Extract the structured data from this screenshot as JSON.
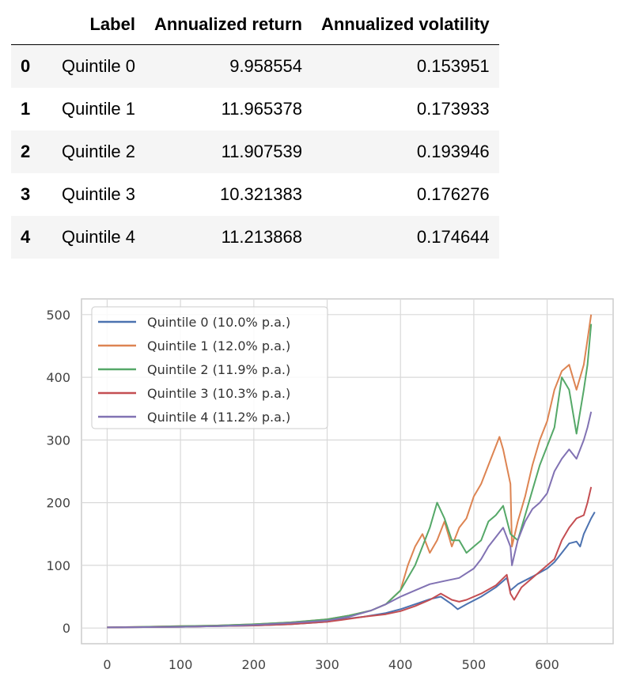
{
  "table": {
    "columns": [
      "",
      "Label",
      "Annualized return",
      "Annualized volatility"
    ],
    "rows": [
      {
        "index": "0",
        "label": "Quintile 0",
        "annualized_return": "9.958554",
        "annualized_volatility": "0.153951"
      },
      {
        "index": "1",
        "label": "Quintile 1",
        "annualized_return": "11.965378",
        "annualized_volatility": "0.173933"
      },
      {
        "index": "2",
        "label": "Quintile 2",
        "annualized_return": "11.907539",
        "annualized_volatility": "0.193946"
      },
      {
        "index": "3",
        "label": "Quintile 3",
        "annualized_return": "10.321383",
        "annualized_volatility": "0.176276"
      },
      {
        "index": "4",
        "label": "Quintile 4",
        "annualized_return": "11.213868",
        "annualized_volatility": "0.174644"
      }
    ]
  },
  "chart_data": {
    "type": "line",
    "title": "",
    "xlabel": "",
    "ylabel": "",
    "xlim": [
      -35,
      690
    ],
    "ylim": [
      -25,
      525
    ],
    "x_ticks": [
      0,
      100,
      200,
      300,
      400,
      500,
      600
    ],
    "y_ticks": [
      0,
      100,
      200,
      300,
      400,
      500
    ],
    "grid": true,
    "legend_position": "top-left",
    "series": [
      {
        "name": "Quintile 0 (10.0% p.a.)",
        "color": "#4c72b0",
        "points": [
          [
            0,
            1
          ],
          [
            50,
            1.5
          ],
          [
            100,
            2
          ],
          [
            150,
            3
          ],
          [
            200,
            4
          ],
          [
            250,
            6
          ],
          [
            300,
            10
          ],
          [
            320,
            14
          ],
          [
            350,
            18
          ],
          [
            380,
            24
          ],
          [
            400,
            30
          ],
          [
            420,
            38
          ],
          [
            440,
            46
          ],
          [
            455,
            50
          ],
          [
            470,
            38
          ],
          [
            478,
            30
          ],
          [
            490,
            38
          ],
          [
            510,
            50
          ],
          [
            530,
            65
          ],
          [
            545,
            80
          ],
          [
            550,
            60
          ],
          [
            560,
            70
          ],
          [
            580,
            82
          ],
          [
            600,
            95
          ],
          [
            610,
            105
          ],
          [
            620,
            120
          ],
          [
            630,
            135
          ],
          [
            640,
            138
          ],
          [
            645,
            130
          ],
          [
            650,
            150
          ],
          [
            660,
            175
          ],
          [
            665,
            185
          ]
        ]
      },
      {
        "name": "Quintile 1 (12.0% p.a.)",
        "color": "#dd8452",
        "points": [
          [
            0,
            1
          ],
          [
            50,
            2
          ],
          [
            100,
            3
          ],
          [
            150,
            4
          ],
          [
            200,
            6
          ],
          [
            250,
            9
          ],
          [
            300,
            14
          ],
          [
            330,
            20
          ],
          [
            360,
            28
          ],
          [
            380,
            38
          ],
          [
            400,
            60
          ],
          [
            410,
            100
          ],
          [
            420,
            130
          ],
          [
            430,
            150
          ],
          [
            440,
            120
          ],
          [
            450,
            140
          ],
          [
            460,
            170
          ],
          [
            470,
            130
          ],
          [
            480,
            160
          ],
          [
            490,
            175
          ],
          [
            500,
            210
          ],
          [
            510,
            230
          ],
          [
            520,
            260
          ],
          [
            530,
            290
          ],
          [
            535,
            305
          ],
          [
            540,
            285
          ],
          [
            550,
            230
          ],
          [
            552,
            130
          ],
          [
            560,
            170
          ],
          [
            570,
            210
          ],
          [
            580,
            260
          ],
          [
            590,
            300
          ],
          [
            600,
            330
          ],
          [
            610,
            380
          ],
          [
            620,
            410
          ],
          [
            630,
            420
          ],
          [
            640,
            380
          ],
          [
            650,
            420
          ],
          [
            655,
            460
          ],
          [
            660,
            500
          ]
        ]
      },
      {
        "name": "Quintile 2 (11.9% p.a.)",
        "color": "#55a868",
        "points": [
          [
            0,
            1
          ],
          [
            50,
            2
          ],
          [
            100,
            3
          ],
          [
            150,
            4
          ],
          [
            200,
            6
          ],
          [
            250,
            9
          ],
          [
            300,
            14
          ],
          [
            330,
            20
          ],
          [
            360,
            28
          ],
          [
            380,
            38
          ],
          [
            400,
            60
          ],
          [
            420,
            100
          ],
          [
            440,
            160
          ],
          [
            450,
            200
          ],
          [
            460,
            175
          ],
          [
            470,
            140
          ],
          [
            480,
            140
          ],
          [
            490,
            120
          ],
          [
            500,
            130
          ],
          [
            510,
            140
          ],
          [
            520,
            170
          ],
          [
            530,
            180
          ],
          [
            540,
            195
          ],
          [
            550,
            150
          ],
          [
            560,
            140
          ],
          [
            570,
            180
          ],
          [
            580,
            220
          ],
          [
            590,
            260
          ],
          [
            600,
            290
          ],
          [
            610,
            320
          ],
          [
            620,
            400
          ],
          [
            630,
            380
          ],
          [
            640,
            310
          ],
          [
            650,
            380
          ],
          [
            655,
            420
          ],
          [
            660,
            485
          ]
        ]
      },
      {
        "name": "Quintile 3 (10.3% p.a.)",
        "color": "#c44e52",
        "points": [
          [
            0,
            1
          ],
          [
            50,
            1.5
          ],
          [
            100,
            2
          ],
          [
            150,
            3
          ],
          [
            200,
            4
          ],
          [
            250,
            6
          ],
          [
            300,
            10
          ],
          [
            320,
            13
          ],
          [
            350,
            18
          ],
          [
            380,
            22
          ],
          [
            400,
            27
          ],
          [
            420,
            35
          ],
          [
            440,
            45
          ],
          [
            455,
            55
          ],
          [
            470,
            45
          ],
          [
            480,
            42
          ],
          [
            490,
            45
          ],
          [
            510,
            55
          ],
          [
            530,
            68
          ],
          [
            545,
            85
          ],
          [
            550,
            55
          ],
          [
            555,
            45
          ],
          [
            565,
            65
          ],
          [
            580,
            80
          ],
          [
            600,
            100
          ],
          [
            610,
            110
          ],
          [
            620,
            140
          ],
          [
            630,
            160
          ],
          [
            640,
            175
          ],
          [
            650,
            180
          ],
          [
            655,
            200
          ],
          [
            660,
            225
          ]
        ]
      },
      {
        "name": "Quintile 4 (11.2% p.a.)",
        "color": "#8172b3",
        "points": [
          [
            0,
            1
          ],
          [
            50,
            1.5
          ],
          [
            100,
            2
          ],
          [
            150,
            3
          ],
          [
            200,
            5
          ],
          [
            250,
            8
          ],
          [
            300,
            12
          ],
          [
            330,
            18
          ],
          [
            360,
            28
          ],
          [
            380,
            38
          ],
          [
            400,
            50
          ],
          [
            420,
            60
          ],
          [
            440,
            70
          ],
          [
            460,
            75
          ],
          [
            480,
            80
          ],
          [
            500,
            95
          ],
          [
            510,
            110
          ],
          [
            520,
            130
          ],
          [
            530,
            145
          ],
          [
            540,
            160
          ],
          [
            550,
            130
          ],
          [
            552,
            100
          ],
          [
            560,
            140
          ],
          [
            570,
            170
          ],
          [
            580,
            190
          ],
          [
            590,
            200
          ],
          [
            600,
            215
          ],
          [
            610,
            250
          ],
          [
            620,
            270
          ],
          [
            630,
            285
          ],
          [
            640,
            270
          ],
          [
            650,
            300
          ],
          [
            655,
            320
          ],
          [
            660,
            345
          ]
        ]
      }
    ]
  }
}
